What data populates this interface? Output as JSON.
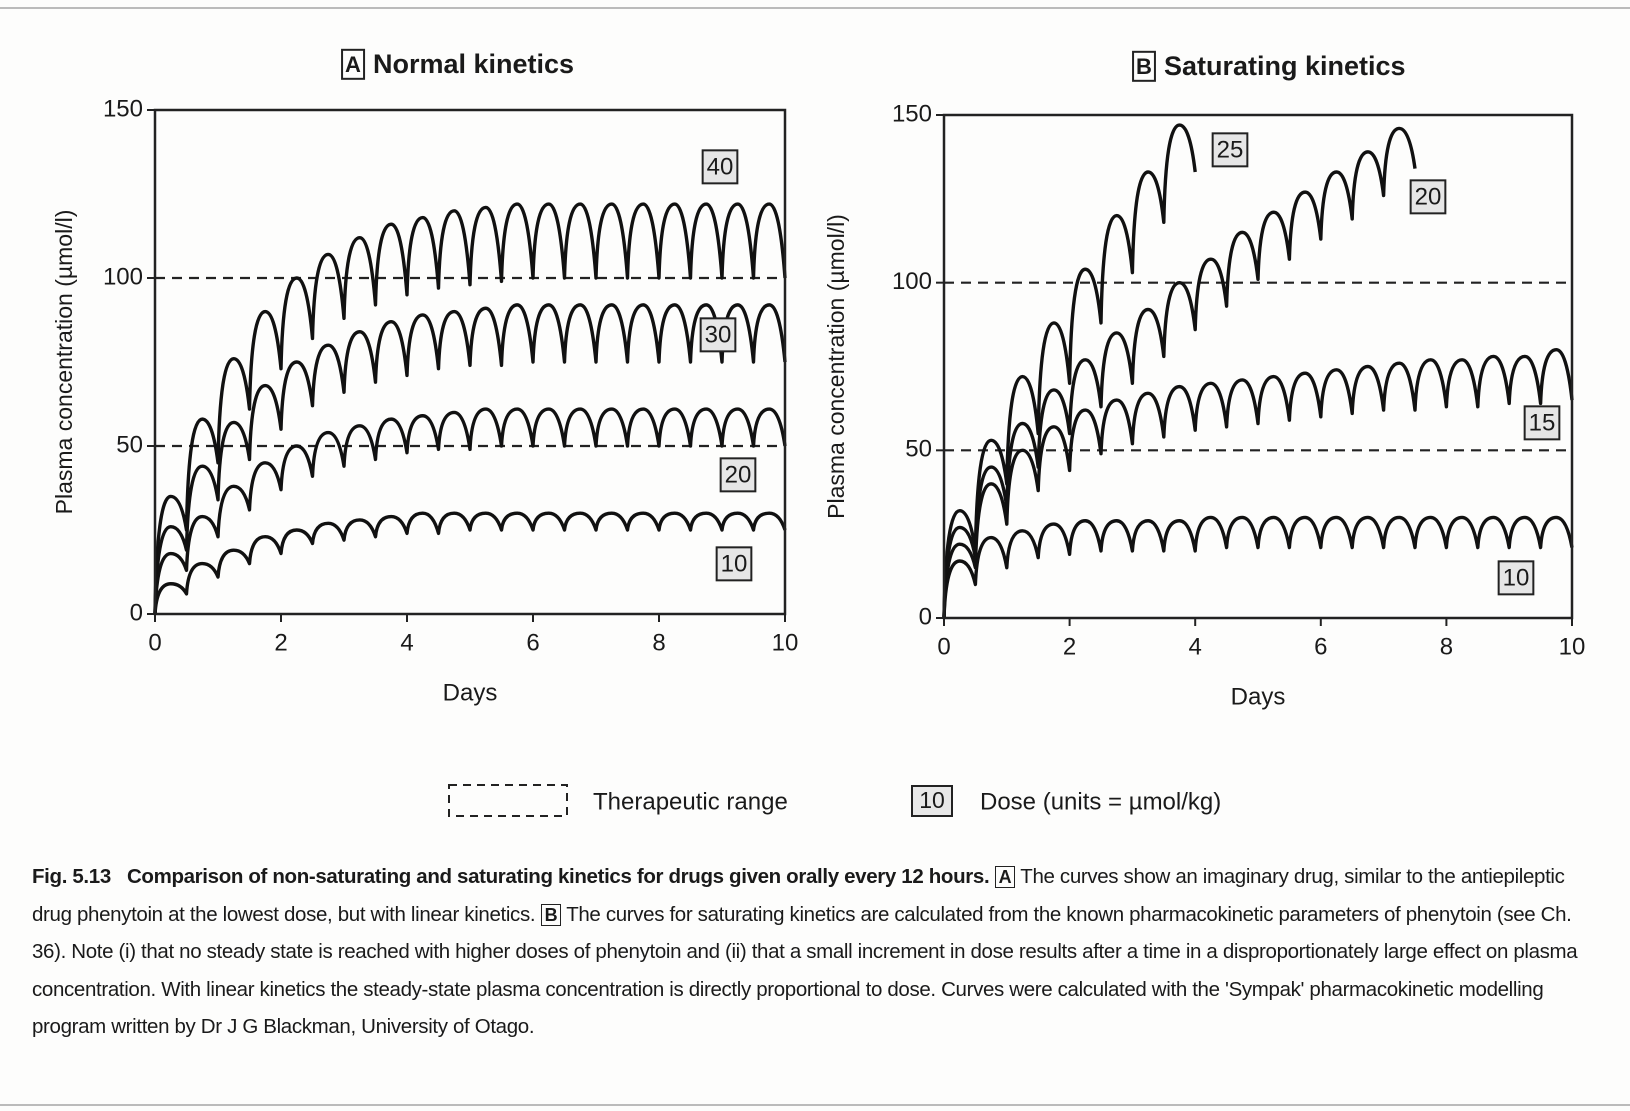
{
  "chart_data": [
    {
      "type": "line",
      "panel": "A",
      "title": "Normal kinetics",
      "x_label": "Days",
      "y_label": "Plasma concentration (µmol/l)",
      "xlim": [
        0,
        10
      ],
      "ylim": [
        0,
        150
      ],
      "xticks": [
        0,
        2,
        4,
        6,
        8,
        10
      ],
      "yticks": [
        0,
        50,
        100,
        150
      ],
      "reference_lines": [
        50,
        100
      ],
      "x": [
        0,
        0.25,
        0.5,
        0.75,
        1,
        1.25,
        1.5,
        1.75,
        2,
        2.25,
        2.5,
        2.75,
        3,
        3.25,
        3.5,
        3.75,
        4,
        4.25,
        4.5,
        4.75,
        5,
        5.25,
        5.5,
        5.75,
        6,
        6.25,
        6.5,
        6.75,
        7,
        7.25,
        7.5,
        7.75,
        8,
        8.25,
        8.5,
        8.75,
        9,
        9.25,
        9.5,
        9.75,
        10
      ],
      "series": [
        {
          "name": "40",
          "color": "#111111",
          "values": [
            0,
            35,
            25,
            58,
            45,
            76,
            61,
            90,
            73,
            100,
            82,
            107,
            88,
            112,
            92,
            116,
            95,
            118,
            97,
            120,
            98,
            121,
            99,
            122,
            100,
            122,
            100,
            122,
            100,
            122,
            100,
            122,
            100,
            122,
            100,
            122,
            100,
            122,
            100,
            122,
            100
          ]
        },
        {
          "name": "30",
          "color": "#111111",
          "values": [
            0,
            26,
            19,
            44,
            34,
            57,
            46,
            68,
            55,
            75,
            62,
            80,
            66,
            84,
            69,
            87,
            71,
            89,
            73,
            90,
            74,
            91,
            74,
            92,
            75,
            92,
            75,
            92,
            75,
            92,
            75,
            92,
            75,
            92,
            75,
            92,
            75,
            92,
            75,
            92,
            75
          ]
        },
        {
          "name": "20",
          "color": "#111111",
          "values": [
            0,
            18,
            13,
            29,
            23,
            38,
            31,
            45,
            37,
            50,
            41,
            54,
            44,
            56,
            46,
            58,
            48,
            59,
            49,
            60,
            49,
            61,
            50,
            61,
            50,
            61,
            50,
            61,
            50,
            61,
            50,
            61,
            50,
            61,
            50,
            61,
            50,
            61,
            50,
            61,
            50
          ]
        },
        {
          "name": "10",
          "color": "#111111",
          "values": [
            0,
            9,
            6,
            15,
            11,
            19,
            15,
            23,
            18,
            25,
            21,
            27,
            22,
            28,
            23,
            29,
            24,
            30,
            24,
            30,
            25,
            30,
            25,
            30,
            25,
            30,
            25,
            30,
            25,
            30,
            25,
            30,
            25,
            30,
            25,
            30,
            25,
            30,
            25,
            30,
            25
          ]
        }
      ]
    },
    {
      "type": "line",
      "panel": "B",
      "title": "Saturating kinetics",
      "x_label": "Days",
      "y_label": "Plasma concentration (µmol/l)",
      "xlim": [
        0,
        10
      ],
      "ylim": [
        0,
        150
      ],
      "xticks": [
        0,
        2,
        4,
        6,
        8,
        10
      ],
      "yticks": [
        0,
        50,
        100,
        150
      ],
      "reference_lines": [
        50,
        100
      ],
      "x": [
        0,
        0.25,
        0.5,
        0.75,
        1,
        1.25,
        1.5,
        1.75,
        2,
        2.25,
        2.5,
        2.75,
        3,
        3.25,
        3.5,
        3.75,
        4,
        4.25,
        4.5,
        4.75,
        5,
        5.25,
        5.5,
        5.75,
        6,
        6.25,
        6.5,
        6.75,
        7,
        7.25,
        7.5,
        7.75,
        8,
        8.25,
        8.5,
        8.75,
        9,
        9.25,
        9.5,
        9.75,
        10
      ],
      "series": [
        {
          "name": "25",
          "color": "#111111",
          "values": [
            0,
            32,
            20,
            53,
            40,
            72,
            55,
            88,
            70,
            104,
            88,
            120,
            103,
            133,
            118,
            147,
            133,
            null,
            null,
            null,
            null,
            null,
            null,
            null,
            null,
            null,
            null,
            null,
            null,
            null,
            null,
            null,
            null,
            null,
            null,
            null,
            null,
            null,
            null,
            null,
            null
          ]
        },
        {
          "name": "20",
          "color": "#111111",
          "values": [
            0,
            27,
            18,
            45,
            33,
            58,
            45,
            68,
            55,
            77,
            63,
            85,
            70,
            92,
            78,
            100,
            86,
            107,
            93,
            115,
            101,
            121,
            107,
            127,
            113,
            133,
            119,
            139,
            126,
            146,
            134,
            null,
            null,
            null,
            null,
            null,
            null,
            null,
            null,
            null,
            null
          ]
        },
        {
          "name": "15",
          "color": "#111111",
          "values": [
            0,
            22,
            15,
            40,
            28,
            50,
            38,
            57,
            44,
            62,
            49,
            65,
            52,
            67,
            54,
            69,
            56,
            70,
            57,
            71,
            58,
            72,
            59,
            73,
            60,
            74,
            61,
            75,
            62,
            76,
            62,
            77,
            63,
            77,
            63,
            78,
            64,
            78,
            64,
            80,
            65
          ]
        },
        {
          "name": "10",
          "color": "#111111",
          "values": [
            0,
            17,
            10,
            24,
            15,
            26,
            18,
            28,
            19,
            29,
            20,
            29,
            20,
            29,
            20,
            29,
            20,
            30,
            21,
            30,
            21,
            30,
            21,
            30,
            21,
            30,
            21,
            30,
            21,
            30,
            21,
            30,
            21,
            30,
            21,
            30,
            21,
            30,
            21,
            30,
            21
          ]
        }
      ]
    }
  ],
  "legend": {
    "therapeutic_label": "Therapeutic range",
    "dose_example": "10",
    "dose_label": "Dose (units = µmol/kg)"
  },
  "caption": {
    "figure": "Fig. 5.13",
    "heading": "Comparison of non-saturating and saturating kinetics for drugs given orally every 12 hours.",
    "panel_a": "A",
    "text_a": "The curves show an imaginary drug, similar to the antiepileptic drug phenytoin at the lowest dose, but with linear kinetics.",
    "panel_b": "B",
    "text_b": "The curves for saturating kinetics are calculated from the known pharmacokinetic parameters of phenytoin (see Ch. 36). Note (i) that no steady state is reached with higher doses of phenytoin and (ii) that a small increment in dose results after a time in a disproportionately large effect on plasma concentration. With linear kinetics the steady-state plasma concentration is directly proportional to dose. Curves were calculated with the 'Sympak' pharmacokinetic modelling program written by Dr J G Blackman, University of Otago."
  }
}
